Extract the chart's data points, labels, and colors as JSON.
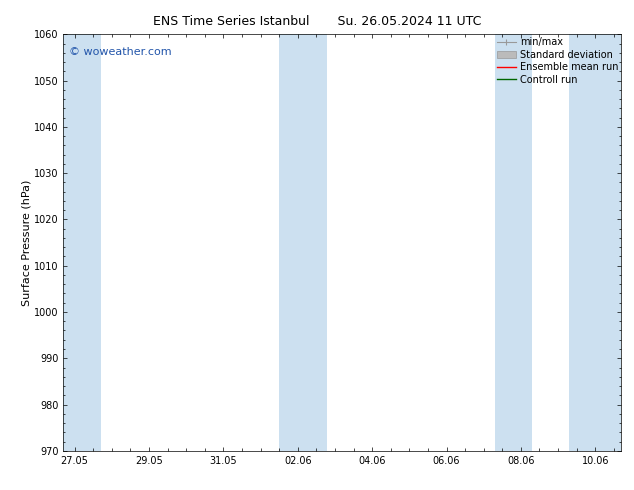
{
  "title_left": "ENS Time Series Istanbul",
  "title_right": "Su. 26.05.2024 11 UTC",
  "ylabel": "Surface Pressure (hPa)",
  "ylim": [
    970,
    1060
  ],
  "yticks": [
    970,
    980,
    990,
    1000,
    1010,
    1020,
    1030,
    1040,
    1050,
    1060
  ],
  "xtick_labels": [
    "27.05",
    "29.05",
    "31.05",
    "02.06",
    "04.06",
    "06.06",
    "08.06",
    "10.06"
  ],
  "xtick_positions": [
    0,
    2,
    4,
    6,
    8,
    10,
    12,
    14
  ],
  "xlim": [
    -0.3,
    14.7
  ],
  "shaded_bands": [
    {
      "x_start": -0.3,
      "x_end": 0.7
    },
    {
      "x_start": 5.5,
      "x_end": 6.8
    },
    {
      "x_start": 11.3,
      "x_end": 12.3
    },
    {
      "x_start": 13.3,
      "x_end": 14.7
    }
  ],
  "band_color": "#cce0f0",
  "bg_color": "#ffffff",
  "watermark": "© woweather.com",
  "watermark_color": "#2255aa",
  "legend_labels": [
    "min/max",
    "Standard deviation",
    "Ensemble mean run",
    "Controll run"
  ],
  "legend_line_colors": [
    "#999999",
    "#bbbbbb",
    "#ff0000",
    "#006600"
  ],
  "title_fontsize": 9,
  "axis_label_fontsize": 8,
  "tick_fontsize": 7,
  "watermark_fontsize": 8,
  "legend_fontsize": 7
}
